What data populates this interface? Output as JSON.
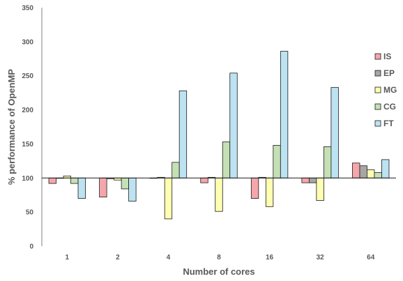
{
  "chart_data": {
    "type": "bar",
    "xlabel": "Number of cores",
    "ylabel": "% performance of OpenMP",
    "ylim": [
      0,
      350
    ],
    "yticks": [
      0,
      50,
      100,
      150,
      200,
      250,
      300,
      350
    ],
    "baseline": 100,
    "categories": [
      "1",
      "2",
      "4",
      "8",
      "16",
      "32",
      "64"
    ],
    "legend_position": "right",
    "series": [
      {
        "name": "IS",
        "color": "#f4a6ab",
        "values": [
          92,
          72,
          100,
          93,
          70,
          93,
          122
        ]
      },
      {
        "name": "EP",
        "color": "#a6a6a6",
        "values": [
          100,
          99,
          101,
          101,
          101,
          93,
          118
        ]
      },
      {
        "name": "MG",
        "color": "#ffffb3",
        "values": [
          103,
          97,
          40,
          51,
          58,
          67,
          112
        ]
      },
      {
        "name": "CG",
        "color": "#c5e0b4",
        "values": [
          92,
          84,
          123,
          153,
          148,
          146,
          108
        ]
      },
      {
        "name": "FT",
        "color": "#bde3f2",
        "values": [
          70,
          66,
          228,
          254,
          286,
          233,
          127
        ]
      }
    ]
  }
}
